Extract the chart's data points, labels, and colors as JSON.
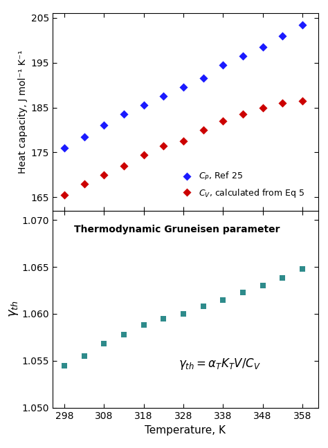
{
  "temp": [
    298,
    303,
    308,
    313,
    318,
    323,
    328,
    333,
    338,
    343,
    348,
    353,
    358
  ],
  "Cp": [
    176.0,
    178.5,
    181.0,
    183.5,
    185.5,
    187.5,
    189.5,
    191.5,
    194.5,
    196.5,
    198.5,
    201.0,
    203.5
  ],
  "Cv": [
    165.5,
    168.0,
    170.0,
    172.0,
    174.5,
    176.5,
    177.5,
    180.0,
    182.0,
    183.5,
    185.0,
    186.0,
    186.5
  ],
  "gamma": [
    1.0545,
    1.0555,
    1.0568,
    1.0578,
    1.0588,
    1.0595,
    1.06,
    1.0608,
    1.0615,
    1.0623,
    1.063,
    1.0638,
    1.0648
  ],
  "Cp_color": "#1a1aff",
  "Cv_color": "#cc0000",
  "gamma_color": "#2e8b8b",
  "upper_ylabel": "Heat capacity, J mol⁻¹ K⁻¹",
  "upper_ylim": [
    162,
    206
  ],
  "upper_yticks": [
    165,
    175,
    185,
    195,
    205
  ],
  "lower_ylabel": "$\\gamma_{th}$",
  "lower_ylim": [
    1.05,
    1.071
  ],
  "lower_yticks": [
    1.05,
    1.055,
    1.06,
    1.065,
    1.07
  ],
  "xlabel": "Temperature, K",
  "xlim": [
    295,
    362
  ],
  "xticks": [
    298,
    308,
    318,
    328,
    338,
    348,
    358
  ],
  "lower_title": "Thermodynamic Gruneisen parameter",
  "legend_Cp": "$C_P$, Ref 25",
  "legend_Cv": "$C_V$, calculated from Eq 5",
  "formula": "$\\gamma_{th} = \\alpha_T K_T V / C_V$",
  "background_color": "#ffffff"
}
